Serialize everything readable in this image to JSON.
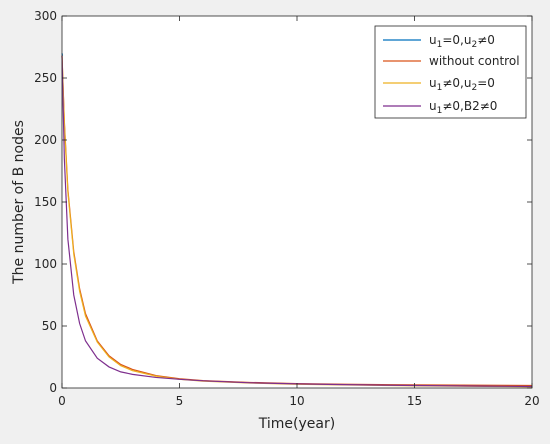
{
  "chart_data": {
    "type": "line",
    "xlabel": "Time(year)",
    "ylabel": "The number of B nodes",
    "xlim": [
      0,
      20
    ],
    "ylim": [
      0,
      300
    ],
    "x_ticks": [
      "0",
      "5",
      "10",
      "15",
      "20"
    ],
    "y_ticks": [
      "0",
      "50",
      "100",
      "150",
      "200",
      "250",
      "300"
    ],
    "legend_position": "top-right",
    "series": [
      {
        "legend_main": "u",
        "legend_sub1": "1",
        "legend_mid": "=0,u",
        "legend_sub2": "2",
        "legend_tail": "≠0",
        "color": "#0072bd",
        "x": [
          0,
          0.02
        ],
        "y": [
          270,
          268
        ]
      },
      {
        "legend_main": "without control",
        "legend_sub1": "",
        "legend_mid": "",
        "legend_sub2": "",
        "legend_tail": "",
        "color": "#d95319",
        "x": [
          0,
          0.1,
          0.25,
          0.5,
          0.75,
          1,
          1.5,
          2,
          2.5,
          3,
          4,
          5,
          6,
          8,
          10,
          12,
          15,
          18,
          20
        ],
        "y": [
          268,
          215,
          160,
          110,
          80,
          60,
          38,
          26,
          19,
          15,
          10,
          7.5,
          6,
          4.5,
          3.5,
          3,
          2.5,
          2.2,
          2
        ]
      },
      {
        "legend_main": "u",
        "legend_sub1": "1",
        "legend_mid": "≠0,u",
        "legend_sub2": "2",
        "legend_tail": "=0",
        "color": "#edb120",
        "x": [
          0,
          0.1,
          0.25,
          0.5,
          0.75,
          1,
          1.5,
          2,
          2.5,
          3,
          4,
          5,
          6,
          8,
          10,
          12,
          15,
          18,
          20
        ],
        "y": [
          268,
          213,
          158,
          108,
          78,
          58,
          37,
          25,
          18,
          14,
          9.5,
          7,
          5.5,
          4,
          3,
          2.5,
          1.8,
          1.3,
          1
        ]
      },
      {
        "legend_main": "u",
        "legend_sub1": "1",
        "legend_mid": "≠0,B2≠0",
        "legend_sub2": "",
        "legend_tail": "",
        "color": "#7e2f8e",
        "x": [
          0,
          0.1,
          0.25,
          0.5,
          0.75,
          1,
          1.5,
          2,
          2.5,
          3,
          4,
          5,
          6,
          8,
          10,
          12,
          15,
          18,
          20
        ],
        "y": [
          268,
          185,
          120,
          75,
          52,
          38,
          24,
          17,
          13,
          11,
          8.5,
          7,
          5.8,
          4.2,
          3.3,
          2.7,
          2,
          1.5,
          1.2
        ]
      }
    ]
  }
}
